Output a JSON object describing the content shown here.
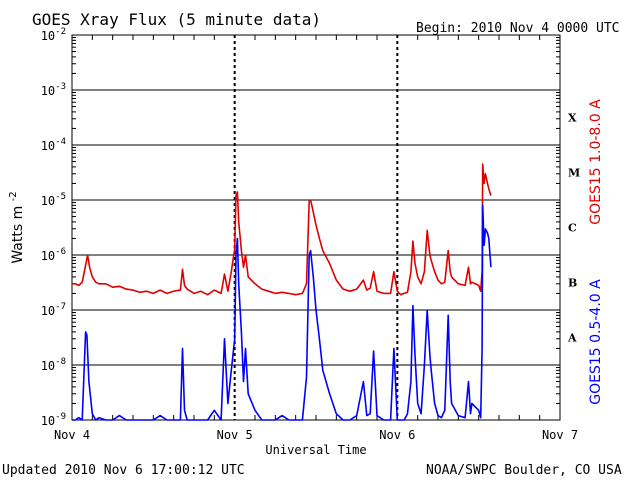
{
  "header": {
    "title": "GOES Xray Flux (5 minute data)",
    "begin": "Begin:  2010 Nov 4 0000 UTC"
  },
  "footer": {
    "updated": "Updated 2010 Nov  6 17:00:12 UTC",
    "credit": "NOAA/SWPC Boulder, CO USA"
  },
  "colors": {
    "long_channel": "#e00000",
    "short_channel": "#0000ff",
    "grid": "#000000",
    "background": "#ffffff"
  },
  "chart_data": {
    "type": "line",
    "title": "GOES Xray Flux (5 minute data)",
    "xlabel": "Universal Time",
    "ylabel": "Watts m",
    "ylabel_superscript": "-2",
    "yscale": "log",
    "ylim": [
      1e-09,
      0.01
    ],
    "xlim": [
      0,
      72
    ],
    "x_unit": "hours since 2010 Nov 4 0000 UTC",
    "x_tick_labels": [
      {
        "x": 0,
        "label": "Nov 4"
      },
      {
        "x": 24,
        "label": "Nov 5"
      },
      {
        "x": 48,
        "label": "Nov 6"
      },
      {
        "x": 72,
        "label": "Nov 7"
      }
    ],
    "y_tick_labels": [
      {
        "exp": -9,
        "label": "10",
        "sup": "-9"
      },
      {
        "exp": -8,
        "label": "10",
        "sup": "-8"
      },
      {
        "exp": -7,
        "label": "10",
        "sup": "-7"
      },
      {
        "exp": -6,
        "label": "10",
        "sup": "-6"
      },
      {
        "exp": -5,
        "label": "10",
        "sup": "-5"
      },
      {
        "exp": -4,
        "label": "10",
        "sup": "-4"
      },
      {
        "exp": -3,
        "label": "10",
        "sup": "-3"
      },
      {
        "exp": -2,
        "label": "10",
        "sup": "-2"
      }
    ],
    "flare_classes": [
      {
        "label": "A",
        "exp": -7.5
      },
      {
        "label": "B",
        "exp": -6.5
      },
      {
        "label": "C",
        "exp": -5.5
      },
      {
        "label": "M",
        "exp": -4.5
      },
      {
        "label": "X",
        "exp": -3.5
      }
    ],
    "grid": true,
    "series": [
      {
        "name": "GOES15 1.0-8.0 A",
        "color": "#e00000",
        "points": [
          [
            0,
            3e-07
          ],
          [
            0.5,
            3e-07
          ],
          [
            1,
            2.8e-07
          ],
          [
            1.5,
            3.2e-07
          ],
          [
            2,
            6.5e-07
          ],
          [
            2.3,
            1e-06
          ],
          [
            2.6,
            6e-07
          ],
          [
            3,
            4e-07
          ],
          [
            3.5,
            3.2e-07
          ],
          [
            4,
            3e-07
          ],
          [
            5,
            3e-07
          ],
          [
            6,
            2.6e-07
          ],
          [
            7,
            2.7e-07
          ],
          [
            8,
            2.4e-07
          ],
          [
            9,
            2.3e-07
          ],
          [
            10,
            2.1e-07
          ],
          [
            11,
            2.2e-07
          ],
          [
            12,
            2e-07
          ],
          [
            13,
            2.3e-07
          ],
          [
            14,
            2e-07
          ],
          [
            15,
            2.2e-07
          ],
          [
            16,
            2.3e-07
          ],
          [
            16.3,
            5.5e-07
          ],
          [
            16.6,
            2.8e-07
          ],
          [
            17,
            2.4e-07
          ],
          [
            18,
            2e-07
          ],
          [
            19,
            2.2e-07
          ],
          [
            20,
            1.9e-07
          ],
          [
            21,
            2.3e-07
          ],
          [
            22,
            2e-07
          ],
          [
            22.5,
            4.5e-07
          ],
          [
            23,
            2.2e-07
          ],
          [
            23.5,
            5e-07
          ],
          [
            24,
            1.3e-06
          ],
          [
            24.2,
            1.2e-05
          ],
          [
            24.4,
            1.4e-05
          ],
          [
            24.6,
            4e-06
          ],
          [
            25,
            1.2e-06
          ],
          [
            25.3,
            6e-07
          ],
          [
            25.6,
            1e-06
          ],
          [
            26,
            4e-07
          ],
          [
            27,
            3e-07
          ],
          [
            28,
            2.4e-07
          ],
          [
            29,
            2.2e-07
          ],
          [
            30,
            2e-07
          ],
          [
            31,
            2.1e-07
          ],
          [
            32,
            2e-07
          ],
          [
            33,
            1.9e-07
          ],
          [
            34,
            2e-07
          ],
          [
            34.6,
            3e-07
          ],
          [
            35,
            9.5e-06
          ],
          [
            35.2,
            1e-05
          ],
          [
            35.6,
            6e-06
          ],
          [
            36,
            3.5e-06
          ],
          [
            36.5,
            2e-06
          ],
          [
            37,
            1.2e-06
          ],
          [
            38,
            7e-07
          ],
          [
            39,
            3.5e-07
          ],
          [
            40,
            2.4e-07
          ],
          [
            41,
            2.2e-07
          ],
          [
            42,
            2.4e-07
          ],
          [
            43,
            3.5e-07
          ],
          [
            43.5,
            2.3e-07
          ],
          [
            44,
            2.5e-07
          ],
          [
            44.5,
            5e-07
          ],
          [
            45,
            2.2e-07
          ],
          [
            46,
            2e-07
          ],
          [
            47,
            2e-07
          ],
          [
            47.5,
            5e-07
          ],
          [
            48,
            2.2e-07
          ],
          [
            48.5,
            1.9e-07
          ],
          [
            49,
            2e-07
          ],
          [
            49.5,
            2.1e-07
          ],
          [
            50,
            5e-07
          ],
          [
            50.3,
            1.8e-06
          ],
          [
            50.6,
            7e-07
          ],
          [
            51,
            4e-07
          ],
          [
            51.5,
            3e-07
          ],
          [
            52,
            5e-07
          ],
          [
            52.4,
            2.8e-06
          ],
          [
            52.8,
            1e-06
          ],
          [
            53,
            8e-07
          ],
          [
            53.5,
            5e-07
          ],
          [
            54,
            3.5e-07
          ],
          [
            54.5,
            3e-07
          ],
          [
            55,
            3.2e-07
          ],
          [
            55.5,
            1.2e-06
          ],
          [
            55.8,
            5e-07
          ],
          [
            56,
            4e-07
          ],
          [
            57,
            3e-07
          ],
          [
            58,
            2.8e-07
          ],
          [
            58.5,
            6e-07
          ],
          [
            58.8,
            3e-07
          ],
          [
            59,
            3.2e-07
          ],
          [
            60,
            2.8e-07
          ],
          [
            60.3,
            2.2e-07
          ],
          [
            60.5,
            5e-07
          ],
          [
            60.6,
            4.5e-05
          ],
          [
            60.8,
            2e-05
          ],
          [
            61,
            3e-05
          ],
          [
            61.3,
            2e-05
          ],
          [
            61.5,
            1.6e-05
          ],
          [
            61.8,
            1.2e-05
          ]
        ]
      },
      {
        "name": "GOES15 0.5-4.0 A",
        "color": "#0000ff",
        "points": [
          [
            0,
            1e-09
          ],
          [
            0.5,
            1e-09
          ],
          [
            1,
            1.1e-09
          ],
          [
            1.5,
            1e-09
          ],
          [
            2,
            4e-08
          ],
          [
            2.2,
            3.5e-08
          ],
          [
            2.5,
            5e-09
          ],
          [
            3,
            1.3e-09
          ],
          [
            3.5,
            1e-09
          ],
          [
            4,
            1.1e-09
          ],
          [
            5,
            1e-09
          ],
          [
            6,
            1e-09
          ],
          [
            7,
            1.2e-09
          ],
          [
            8,
            1e-09
          ],
          [
            9,
            1e-09
          ],
          [
            10,
            1e-09
          ],
          [
            11,
            1e-09
          ],
          [
            12,
            1e-09
          ],
          [
            13,
            1.2e-09
          ],
          [
            14,
            1e-09
          ],
          [
            15,
            1e-09
          ],
          [
            16,
            1e-09
          ],
          [
            16.3,
            2e-08
          ],
          [
            16.6,
            1.5e-09
          ],
          [
            17,
            1e-09
          ],
          [
            18,
            1e-09
          ],
          [
            19,
            1e-09
          ],
          [
            20,
            1e-09
          ],
          [
            21,
            1.5e-09
          ],
          [
            22,
            1e-09
          ],
          [
            22.5,
            3e-08
          ],
          [
            23,
            2e-09
          ],
          [
            23.5,
            8e-09
          ],
          [
            24,
            3e-08
          ],
          [
            24.2,
            1e-06
          ],
          [
            24.4,
            2e-06
          ],
          [
            24.6,
            3e-07
          ],
          [
            25,
            4e-08
          ],
          [
            25.3,
            5e-09
          ],
          [
            25.6,
            2e-08
          ],
          [
            26,
            3e-09
          ],
          [
            27,
            1.5e-09
          ],
          [
            28,
            1e-09
          ],
          [
            29,
            1e-09
          ],
          [
            30,
            1e-09
          ],
          [
            31,
            1.2e-09
          ],
          [
            32,
            1e-09
          ],
          [
            33,
            1e-09
          ],
          [
            34,
            1e-09
          ],
          [
            34.6,
            6e-09
          ],
          [
            35,
            1e-06
          ],
          [
            35.2,
            1.2e-06
          ],
          [
            35.6,
            4e-07
          ],
          [
            36,
            1e-07
          ],
          [
            36.5,
            3e-08
          ],
          [
            37,
            8e-09
          ],
          [
            38,
            3e-09
          ],
          [
            39,
            1.3e-09
          ],
          [
            40,
            1e-09
          ],
          [
            41,
            1e-09
          ],
          [
            42,
            1.2e-09
          ],
          [
            43,
            5e-09
          ],
          [
            43.5,
            1.2e-09
          ],
          [
            44,
            1.3e-09
          ],
          [
            44.5,
            1.8e-08
          ],
          [
            45,
            1.2e-09
          ],
          [
            46,
            1e-09
          ],
          [
            47,
            1e-09
          ],
          [
            47.5,
            2e-08
          ],
          [
            48,
            1e-09
          ],
          [
            48.5,
            1e-09
          ],
          [
            49,
            1e-09
          ],
          [
            49.5,
            1.3e-09
          ],
          [
            50,
            5e-09
          ],
          [
            50.3,
            1.2e-07
          ],
          [
            50.6,
            1.5e-08
          ],
          [
            51,
            2e-09
          ],
          [
            51.5,
            1.3e-09
          ],
          [
            52,
            1e-08
          ],
          [
            52.4,
            1e-07
          ],
          [
            52.8,
            1.5e-08
          ],
          [
            53,
            8e-09
          ],
          [
            53.5,
            2e-09
          ],
          [
            54,
            1.2e-09
          ],
          [
            54.5,
            1.1e-09
          ],
          [
            55,
            1.5e-09
          ],
          [
            55.5,
            8e-08
          ],
          [
            55.8,
            5e-09
          ],
          [
            56,
            2e-09
          ],
          [
            57,
            1.2e-09
          ],
          [
            58,
            1.1e-09
          ],
          [
            58.5,
            5e-09
          ],
          [
            58.8,
            1.3e-09
          ],
          [
            59,
            2e-09
          ],
          [
            60,
            1.5e-09
          ],
          [
            60.3,
            1.1e-09
          ],
          [
            60.5,
            2e-08
          ],
          [
            60.6,
            8e-06
          ],
          [
            60.8,
            1.5e-06
          ],
          [
            61,
            3e-06
          ],
          [
            61.3,
            2.5e-06
          ],
          [
            61.5,
            2e-06
          ],
          [
            61.8,
            6e-07
          ]
        ]
      }
    ]
  }
}
